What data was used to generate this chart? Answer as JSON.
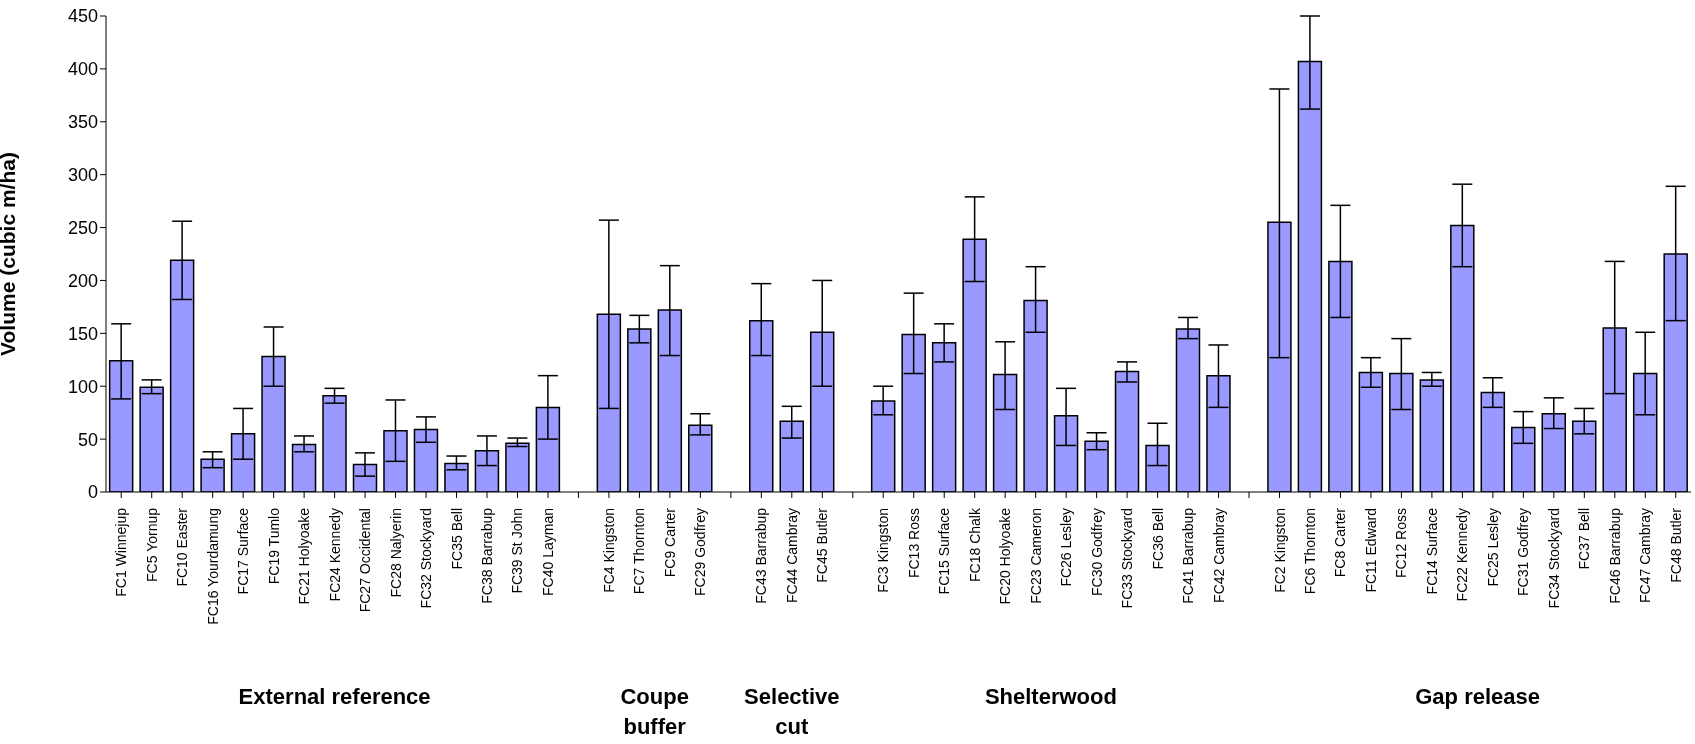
{
  "chart_data": {
    "type": "bar",
    "ylabel": "Volume (cubic m/ha)",
    "color": "#9999ff",
    "categories": [
      "FC1 Winnejup",
      "FC5 Yornup",
      "FC10 Easter",
      "FC16 Yourdamung",
      "FC17 Surface",
      "FC19 Tumlo",
      "FC21 Holyoake",
      "FC24 Kennedy",
      "FC27 Occidental",
      "FC28 Nalyerin",
      "FC32 Stockyard",
      "FC35 Bell",
      "FC38 Barrabup",
      "FC39 St John",
      "FC40 Layman",
      null,
      "FC4 Kingston",
      "FC7 Thornton",
      "FC9 Carter",
      "FC29 Godfrey",
      null,
      "FC43 Barrabup",
      "FC44 Cambray",
      "FC45 Butler",
      null,
      "FC3 Kingston",
      "FC13 Ross",
      "FC15 Surface",
      "FC18 Chalk",
      "FC20 Holyoake",
      "FC23 Cameron",
      "FC26 Lesley",
      "FC30 Godfrey",
      "FC33 Stockyard",
      "FC36 Bell",
      "FC41 Barrabup",
      "FC42 Cambray",
      null,
      "FC2 Kingston",
      "FC6 Thornton",
      "FC8 Carter",
      "FC11 Edward",
      "FC12 Ross",
      "FC14 Surface",
      "FC22 Kennedy",
      "FC25 Lesley",
      "FC31 Godfrey",
      "FC34 Stockyard",
      "FC37 Bell",
      "FC46 Barrabup",
      "FC47 Cambray",
      "FC48 Butler"
    ],
    "values": [
      124,
      99,
      219,
      31,
      55,
      128,
      45,
      91,
      26,
      58,
      59,
      27,
      39,
      46,
      80,
      null,
      168,
      154,
      172,
      63,
      null,
      162,
      67,
      151,
      null,
      86,
      149,
      141,
      239,
      111,
      181,
      72,
      48,
      114,
      44,
      154,
      110,
      null,
      255,
      407,
      218,
      113,
      112,
      106,
      252,
      94,
      61,
      74,
      67,
      155,
      112,
      225
    ],
    "errors": [
      [
        88,
        159
      ],
      [
        93,
        106
      ],
      [
        182,
        256
      ],
      [
        23,
        38
      ],
      [
        31,
        79
      ],
      [
        100,
        156
      ],
      [
        38,
        53
      ],
      [
        84,
        98
      ],
      [
        15,
        37
      ],
      [
        29,
        87
      ],
      [
        47,
        71
      ],
      [
        21,
        34
      ],
      [
        25,
        53
      ],
      [
        43,
        51
      ],
      [
        50,
        110
      ],
      null,
      [
        79,
        257
      ],
      [
        141,
        167
      ],
      [
        129,
        214
      ],
      [
        54,
        74
      ],
      null,
      [
        129,
        197
      ],
      [
        51,
        81
      ],
      [
        100,
        200
      ],
      null,
      [
        73,
        100
      ],
      [
        112,
        188
      ],
      [
        123,
        159
      ],
      [
        199,
        279
      ],
      [
        78,
        142
      ],
      [
        151,
        213
      ],
      [
        44,
        98
      ],
      [
        40,
        56
      ],
      [
        104,
        123
      ],
      [
        25,
        65
      ],
      [
        145,
        165
      ],
      [
        80,
        139
      ],
      null,
      [
        127,
        381
      ],
      [
        362,
        450
      ],
      [
        165,
        271
      ],
      [
        99,
        127
      ],
      [
        78,
        145
      ],
      [
        100,
        113
      ],
      [
        213,
        291
      ],
      [
        80,
        108
      ],
      [
        46,
        76
      ],
      [
        60,
        89
      ],
      [
        55,
        79
      ],
      [
        93,
        218
      ],
      [
        73,
        151
      ],
      [
        162,
        289
      ]
    ],
    "ylim": [
      0,
      450
    ],
    "yticks": [
      0,
      50,
      100,
      150,
      200,
      250,
      300,
      350,
      400,
      450
    ],
    "grid": false,
    "legend": false,
    "annotations": [
      "External reference",
      "Coupe buffer",
      "Selective cut",
      "Shelterwood",
      "Gap release"
    ]
  }
}
